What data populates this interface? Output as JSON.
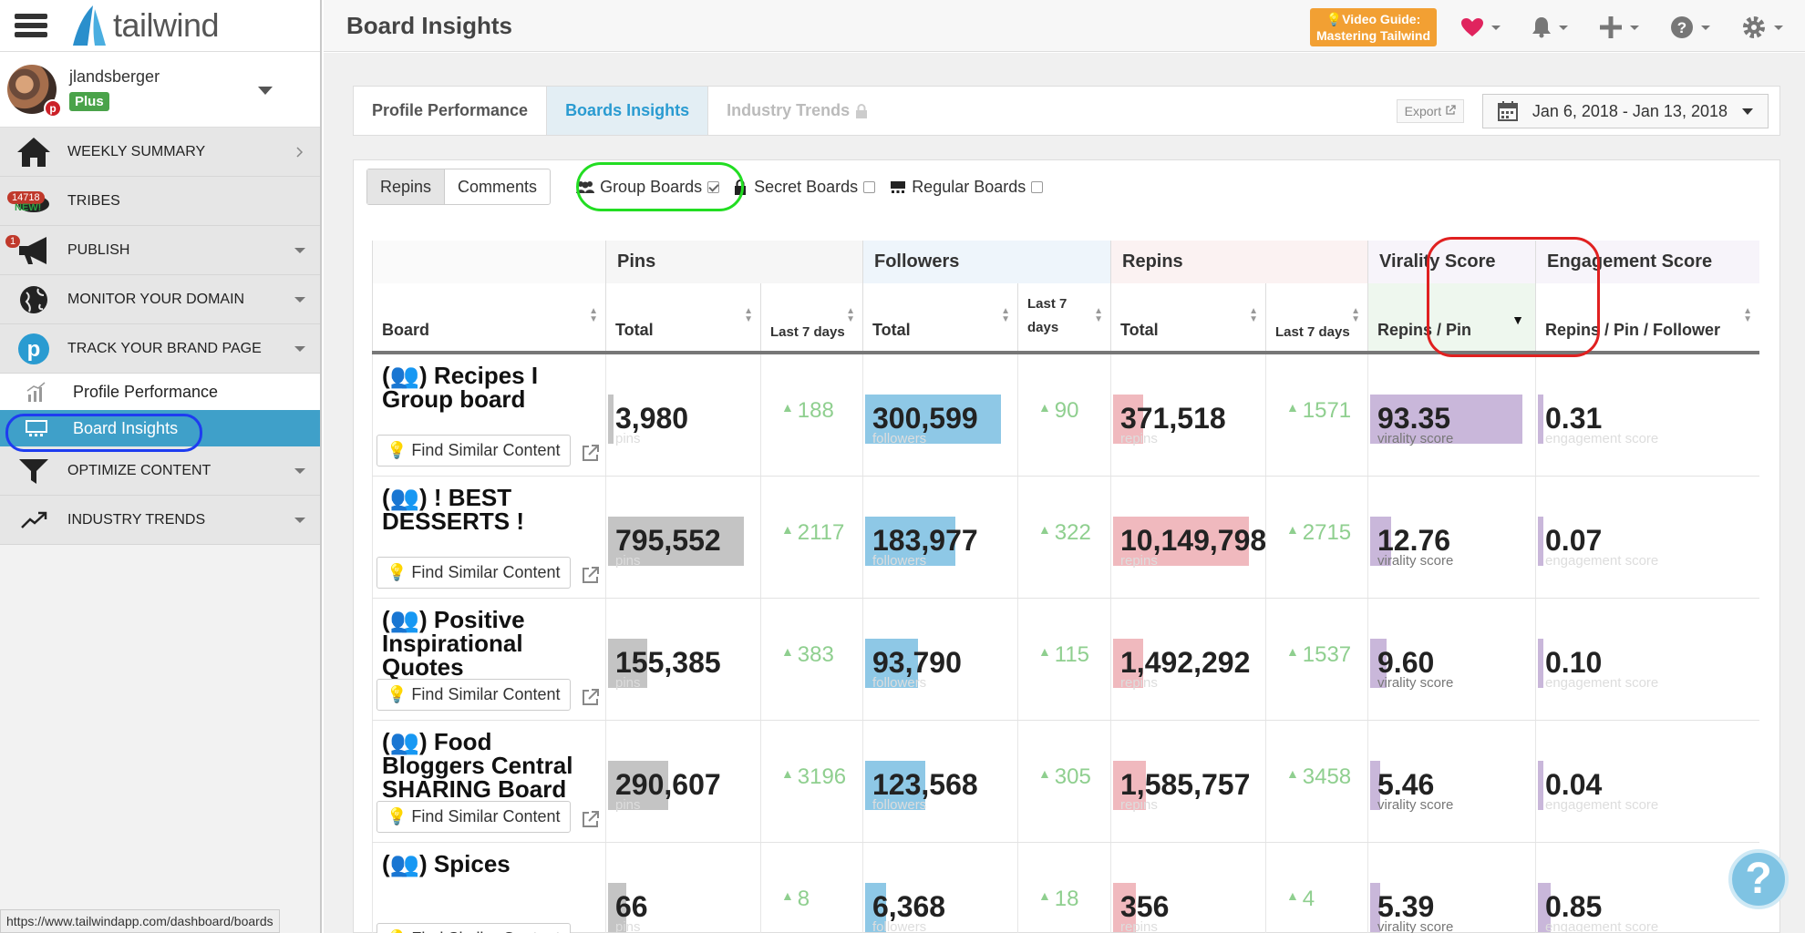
{
  "app": {
    "logo_text": "tailwind",
    "page_title": "Board Insights"
  },
  "user": {
    "name": "jlandsberger",
    "plan": "Plus"
  },
  "sidebar": {
    "items": [
      {
        "label": "WEEKLY SUMMARY",
        "icon": "home-icon"
      },
      {
        "label": "TRIBES",
        "icon": "tribes-icon",
        "badge": "14718",
        "tag": "NEW!"
      },
      {
        "label": "PUBLISH",
        "icon": "megaphone-icon",
        "badge": "1"
      },
      {
        "label": "MONITOR YOUR DOMAIN",
        "icon": "globe-icon"
      },
      {
        "label": "TRACK YOUR BRAND PAGE",
        "icon": "pinterest-icon"
      }
    ],
    "sub_items": [
      {
        "label": "Profile Performance",
        "icon": "chart-icon"
      },
      {
        "label": "Board Insights",
        "icon": "board-icon"
      }
    ],
    "items2": [
      {
        "label": "OPTIMIZE CONTENT",
        "icon": "funnel-icon"
      },
      {
        "label": "INDUSTRY TRENDS",
        "icon": "trend-icon"
      }
    ]
  },
  "status_url": "https://www.tailwindapp.com/dashboard/boards",
  "header": {
    "video_guide_line1": "Video Guide:",
    "video_guide_line2": "Mastering Tailwind"
  },
  "tabs": [
    {
      "label": "Profile Performance"
    },
    {
      "label": "Boards Insights"
    },
    {
      "label": "Industry Trends"
    }
  ],
  "export_label": "Export",
  "date_range": "Jan 6, 2018 - Jan 13, 2018",
  "filters": {
    "seg": [
      "Repins",
      "Comments"
    ],
    "group_boards": "Group Boards",
    "secret_boards": "Secret Boards",
    "regular_boards": "Regular Boards"
  },
  "table": {
    "groups": {
      "pins": "Pins",
      "followers": "Followers",
      "repins": "Repins",
      "virality": "Virality Score",
      "engagement": "Engagement Score"
    },
    "columns": {
      "board": "Board",
      "total": "Total",
      "last7": "Last 7 days",
      "last7_split": "Last 7\ndays",
      "repins_per_pin": "Repins / Pin",
      "repins_per_pin_follower": "Repins / Pin / Follower"
    },
    "find_similar": "Find Similar Content",
    "ghost": {
      "pins": "pins",
      "followers": "followers",
      "repins": "repins",
      "virality": "virality score",
      "engagement": "engagement score"
    },
    "rows": [
      {
        "board": "Recipes I Group board",
        "pins": "3,980",
        "pins_bar": 0.02,
        "pins7": "188",
        "followers": "300,599",
        "followers_bar": 0.9,
        "followers7": "90",
        "repins": "371,518",
        "repins_bar": 0.2,
        "repins7": "1571",
        "virality": "93.35",
        "virality_bar": 0.93,
        "engagement": "0.31",
        "engagement_bar": 0.02
      },
      {
        "board": "! BEST DESSERTS !",
        "pins": "795,552",
        "pins_bar": 0.9,
        "pins7": "2117",
        "followers": "183,977",
        "followers_bar": 0.6,
        "followers7": "322",
        "repins": "10,149,798",
        "repins_bar": 0.9,
        "repins7": "2715",
        "virality": "12.76",
        "virality_bar": 0.13,
        "engagement": "0.07",
        "engagement_bar": 0.02
      },
      {
        "board": "Positive Inspirational Quotes",
        "pins": "155,385",
        "pins_bar": 0.26,
        "pins7": "383",
        "followers": "93,790",
        "followers_bar": 0.35,
        "followers7": "115",
        "repins": "1,492,292",
        "repins_bar": 0.2,
        "repins7": "1537",
        "virality": "9.60",
        "virality_bar": 0.1,
        "engagement": "0.10",
        "engagement_bar": 0.02
      },
      {
        "board": "Food Bloggers Central SHARING Board",
        "pins": "290,607",
        "pins_bar": 0.4,
        "pins7": "3196",
        "followers": "123,568",
        "followers_bar": 0.4,
        "followers7": "305",
        "repins": "1,585,757",
        "repins_bar": 0.22,
        "repins7": "3458",
        "virality": "5.46",
        "virality_bar": 0.06,
        "engagement": "0.04",
        "engagement_bar": 0.02
      },
      {
        "board": "Spices",
        "pins": "66",
        "pins_bar": 0.12,
        "pins7": "8",
        "followers": "6,368",
        "followers_bar": 0.14,
        "followers7": "18",
        "repins": "356",
        "repins_bar": 0.15,
        "repins7": "4",
        "virality": "5.39",
        "virality_bar": 0.06,
        "engagement": "0.85",
        "engagement_bar": 0.06
      }
    ]
  },
  "colors": {
    "accent": "#2a9bd1",
    "active_nav": "#3fa0c9",
    "pins_bar": "#c4c4c4",
    "followers_bar": "#8ec8e6",
    "repins_bar": "#f0b9be",
    "virality_bar": "#c9b7da",
    "engagement_bar": "#c9b7da",
    "delta": "#8fcf8f"
  }
}
